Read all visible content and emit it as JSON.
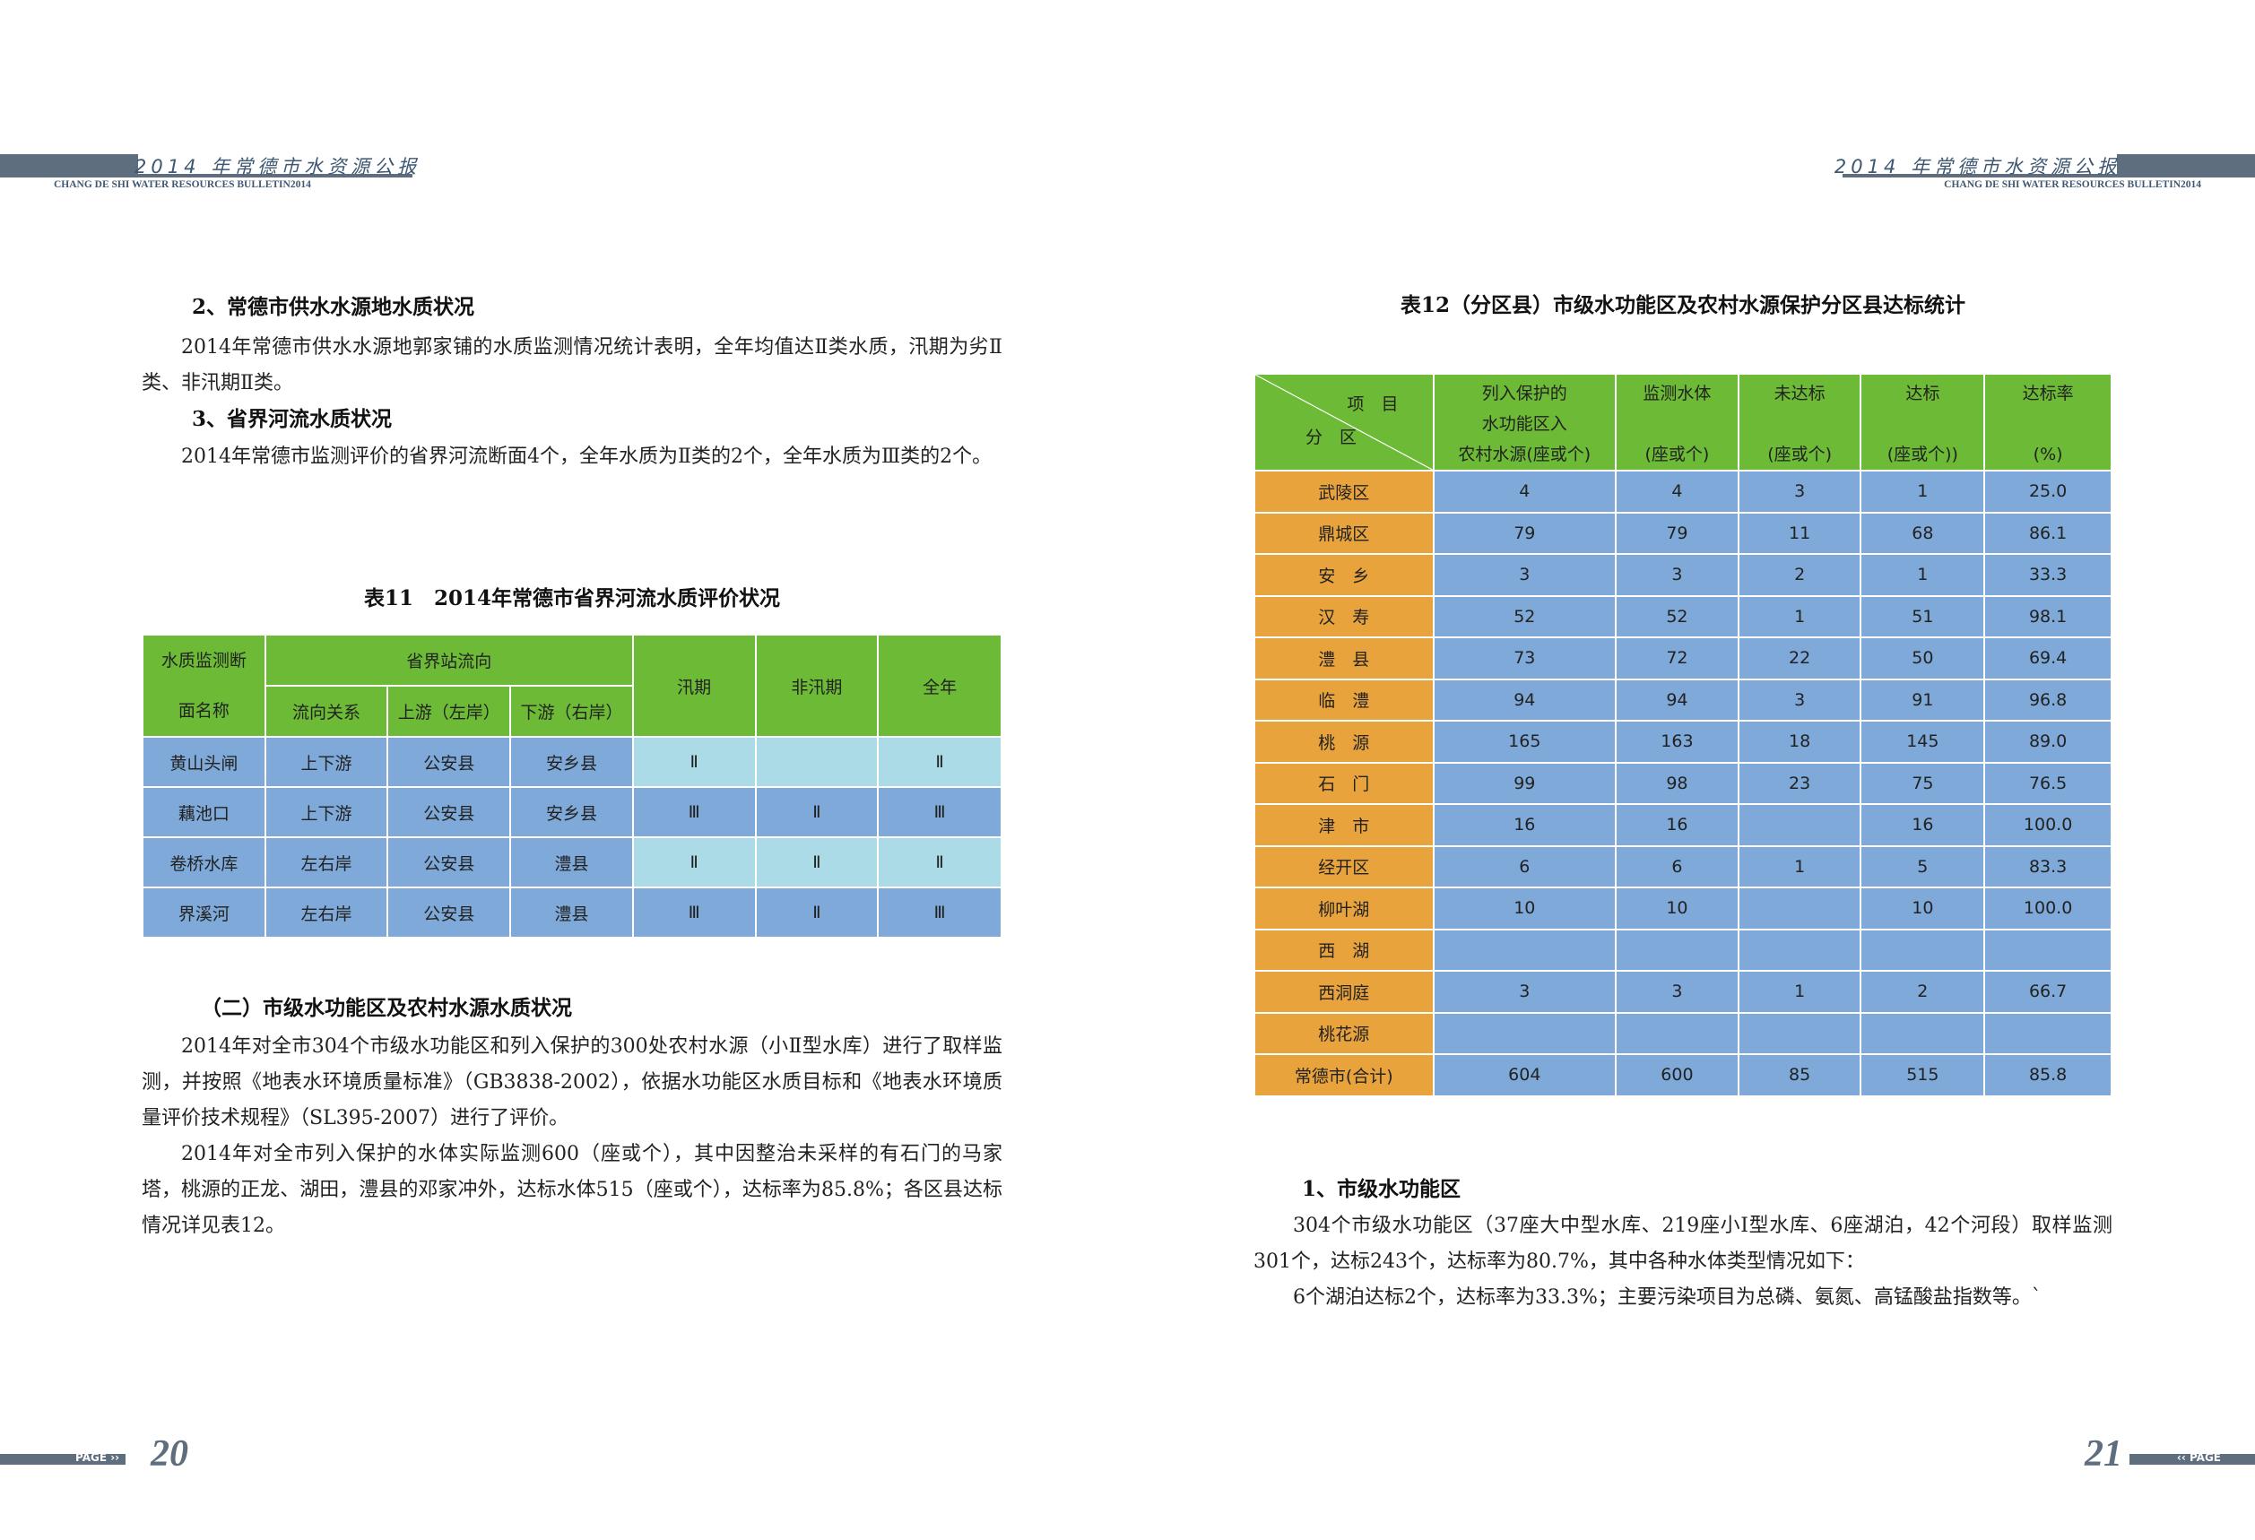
{
  "header": {
    "title": "2014 年常德市水资源公报",
    "subtitle": "CHANG DE SHI WATER RESOURCES BULLETIN2014"
  },
  "footer": {
    "page_label": "PAGE",
    "left_page": "20",
    "right_page": "21"
  },
  "left": {
    "section2_title": "2、常德市供水水源地水质状况",
    "section2_body": "2014年常德市供水水源地郭家铺的水质监测情况统计表明，全年均值达Ⅱ类水质，汛期为劣Ⅱ类、非汛期Ⅱ类。",
    "section3_title": "3、省界河流水质状况",
    "section3_body": "2014年常德市监测评价的省界河流断面4个，全年水质为Ⅱ类的2个，全年水质为Ⅲ类的2个。",
    "table11": {
      "caption": "表11　2014年常德市省界河流水质评价状况",
      "h_section_1": "水质监测断",
      "h_section_2": "面名称",
      "h_group": "省界站流向",
      "h_flow": "流向关系",
      "h_up": "上游（左岸）",
      "h_down": "下游（右岸）",
      "h_flood": "汛期",
      "h_nonflood": "非汛期",
      "h_year": "全年",
      "rows": [
        {
          "name": "黄山头闸",
          "flow": "上下游",
          "up": "公安县",
          "down": "安乡县",
          "flood": "Ⅱ",
          "nonflood": "",
          "year": "Ⅱ"
        },
        {
          "name": "藕池口",
          "flow": "上下游",
          "up": "公安县",
          "down": "安乡县",
          "flood": "Ⅲ",
          "nonflood": "Ⅱ",
          "year": "Ⅲ"
        },
        {
          "name": "卷桥水库",
          "flow": "左右岸",
          "up": "公安县",
          "down": "澧县",
          "flood": "Ⅱ",
          "nonflood": "Ⅱ",
          "year": "Ⅱ"
        },
        {
          "name": "界溪河",
          "flow": "左右岸",
          "up": "公安县",
          "down": "澧县",
          "flood": "Ⅲ",
          "nonflood": "Ⅱ",
          "year": "Ⅲ"
        }
      ]
    },
    "subsection_title": "（二）市级水功能区及农村水源水质状况",
    "para1": "2014年对全市304个市级水功能区和列入保护的300处农村水源（小Ⅱ型水库）进行了取样监测，并按照《地表水环境质量标准》（GB3838-2002），依据水功能区水质目标和《地表水环境质量评价技术规程》（SL395-2007）进行了评价。",
    "para2": "2014年对全市列入保护的水体实际监测600（座或个），其中因整治未采样的有石门的马家塔，桃源的正龙、湖田，澧县的邓家冲外，达标水体515（座或个），达标率为85.8%；各区县达标情况详见表12。"
  },
  "right": {
    "table12": {
      "caption": "表12（分区县）市级水功能区及农村水源保护分区县达标统计",
      "h_item": "项　目",
      "h_zone": "分　区",
      "h_listed_1": "列入保护的",
      "h_listed_2": "水功能区入",
      "h_listed_3": "农村水源(座或个)",
      "h_monitored_1": "监测水体",
      "h_monitored_2": "(座或个)",
      "h_fail_1": "未达标",
      "h_fail_2": "(座或个)",
      "h_pass_1": "达标",
      "h_pass_2": "(座或个))",
      "h_rate_1": "达标率",
      "h_rate_2": "(%)",
      "rows": [
        {
          "zone": "武陵区",
          "listed": "4",
          "monitored": "4",
          "fail": "3",
          "pass": "1",
          "rate": "25.0"
        },
        {
          "zone": "鼎城区",
          "listed": "79",
          "monitored": "79",
          "fail": "11",
          "pass": "68",
          "rate": "86.1"
        },
        {
          "zone": "安　乡",
          "listed": "3",
          "monitored": "3",
          "fail": "2",
          "pass": "1",
          "rate": "33.3"
        },
        {
          "zone": "汉　寿",
          "listed": "52",
          "monitored": "52",
          "fail": "1",
          "pass": "51",
          "rate": "98.1"
        },
        {
          "zone": "澧　县",
          "listed": "73",
          "monitored": "72",
          "fail": "22",
          "pass": "50",
          "rate": "69.4"
        },
        {
          "zone": "临　澧",
          "listed": "94",
          "monitored": "94",
          "fail": "3",
          "pass": "91",
          "rate": "96.8"
        },
        {
          "zone": "桃　源",
          "listed": "165",
          "monitored": "163",
          "fail": "18",
          "pass": "145",
          "rate": "89.0"
        },
        {
          "zone": "石　门",
          "listed": "99",
          "monitored": "98",
          "fail": "23",
          "pass": "75",
          "rate": "76.5"
        },
        {
          "zone": "津　市",
          "listed": "16",
          "monitored": "16",
          "fail": "",
          "pass": "16",
          "rate": "100.0"
        },
        {
          "zone": "经开区",
          "listed": "6",
          "monitored": "6",
          "fail": "1",
          "pass": "5",
          "rate": "83.3"
        },
        {
          "zone": "柳叶湖",
          "listed": "10",
          "monitored": "10",
          "fail": "",
          "pass": "10",
          "rate": "100.0"
        },
        {
          "zone": "西　湖",
          "listed": "",
          "monitored": "",
          "fail": "",
          "pass": "",
          "rate": ""
        },
        {
          "zone": "西洞庭",
          "listed": "3",
          "monitored": "3",
          "fail": "1",
          "pass": "2",
          "rate": "66.7"
        },
        {
          "zone": "桃花源",
          "listed": "",
          "monitored": "",
          "fail": "",
          "pass": "",
          "rate": ""
        },
        {
          "zone": "常德市(合计)",
          "listed": "604",
          "monitored": "600",
          "fail": "85",
          "pass": "515",
          "rate": "85.8"
        }
      ]
    },
    "section1_title": "1、市级水功能区",
    "para1": "304个市级水功能区（37座大中型水库、219座小Ⅰ型水库、6座湖泊，42个河段）取样监测301个，达标243个，达标率为80.7%，其中各种水体类型情况如下：",
    "para2": "6个湖泊达标2个，达标率为33.3%；主要污染项目为总磷、氨氮、高锰酸盐指数等。`"
  }
}
